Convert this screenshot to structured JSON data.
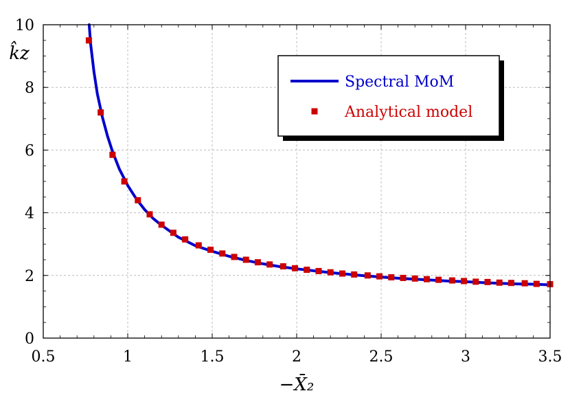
{
  "chart_data": {
    "type": "line",
    "title": "",
    "xlabel": "−X̄₂",
    "ylabel": "k̂z",
    "xlim": [
      0.5,
      3.5
    ],
    "ylim": [
      0,
      10
    ],
    "xticks": [
      "0.5",
      "1",
      "1.5",
      "2",
      "2.5",
      "3",
      "3.5"
    ],
    "yticks": [
      "0",
      "2",
      "4",
      "6",
      "8",
      "10"
    ],
    "grid": true,
    "legend_position": "top-right",
    "series": [
      {
        "name": "Spectral MoM",
        "style": "line",
        "color": "#0000cc",
        "x": [
          0.772,
          0.78,
          0.8,
          0.82,
          0.85,
          0.88,
          0.91,
          0.95,
          1.0,
          1.05,
          1.1,
          1.15,
          1.2,
          1.3,
          1.4,
          1.5,
          1.6,
          1.7,
          1.8,
          1.9,
          2.0,
          2.1,
          2.2,
          2.3,
          2.4,
          2.5,
          2.6,
          2.7,
          2.8,
          2.9,
          3.0,
          3.1,
          3.2,
          3.3,
          3.4,
          3.5
        ],
        "y": [
          10.0,
          9.4,
          8.5,
          7.8,
          7.05,
          6.45,
          5.95,
          5.4,
          4.87,
          4.45,
          4.1,
          3.82,
          3.6,
          3.22,
          2.95,
          2.77,
          2.61,
          2.48,
          2.37,
          2.28,
          2.21,
          2.15,
          2.09,
          2.04,
          1.99,
          1.95,
          1.91,
          1.88,
          1.85,
          1.82,
          1.8,
          1.77,
          1.75,
          1.73,
          1.72,
          1.7
        ]
      },
      {
        "name": "Analytical model",
        "style": "markers",
        "color": "#cc0000",
        "x": [
          0.77,
          0.84,
          0.91,
          0.98,
          1.06,
          1.13,
          1.2,
          1.27,
          1.34,
          1.42,
          1.49,
          1.56,
          1.63,
          1.7,
          1.77,
          1.84,
          1.92,
          1.99,
          2.06,
          2.13,
          2.2,
          2.27,
          2.34,
          2.42,
          2.49,
          2.56,
          2.63,
          2.7,
          2.77,
          2.84,
          2.92,
          2.99,
          3.06,
          3.13,
          3.2,
          3.27,
          3.35,
          3.42,
          3.5
        ],
        "y": [
          9.5,
          7.2,
          5.85,
          5.0,
          4.4,
          3.95,
          3.62,
          3.36,
          3.15,
          2.96,
          2.82,
          2.7,
          2.59,
          2.5,
          2.42,
          2.35,
          2.29,
          2.23,
          2.18,
          2.14,
          2.1,
          2.06,
          2.03,
          2.0,
          1.97,
          1.94,
          1.92,
          1.9,
          1.88,
          1.86,
          1.84,
          1.82,
          1.8,
          1.79,
          1.77,
          1.76,
          1.75,
          1.73,
          1.72
        ]
      }
    ]
  }
}
